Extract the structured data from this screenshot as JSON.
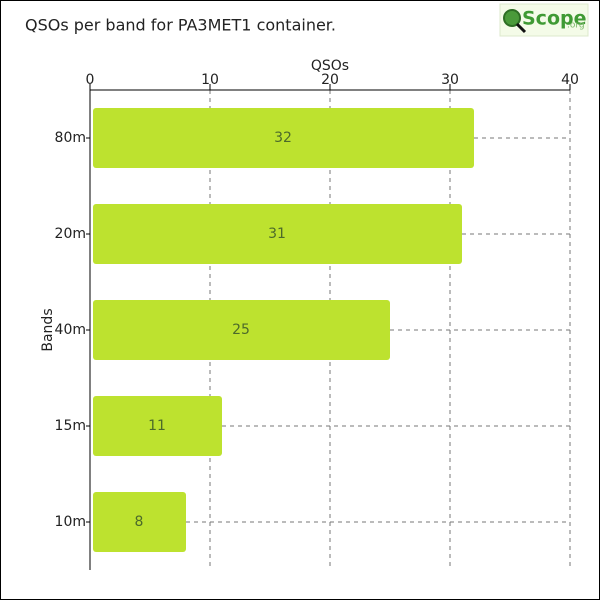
{
  "chart_data": {
    "type": "bar",
    "orientation": "horizontal",
    "title": "QSOs per band for PA3MET1 container.",
    "logo": {
      "text": "Scope",
      "suffix": ".org"
    },
    "x_label": "QSOs",
    "y_label": "Bands",
    "categories": [
      "80m",
      "20m",
      "40m",
      "15m",
      "10m"
    ],
    "values": [
      32,
      31,
      25,
      11,
      8
    ],
    "color": "#bde22f",
    "xlim": [
      0,
      40
    ],
    "xticks": [
      0,
      10,
      20,
      30,
      40
    ],
    "grid": true
  }
}
